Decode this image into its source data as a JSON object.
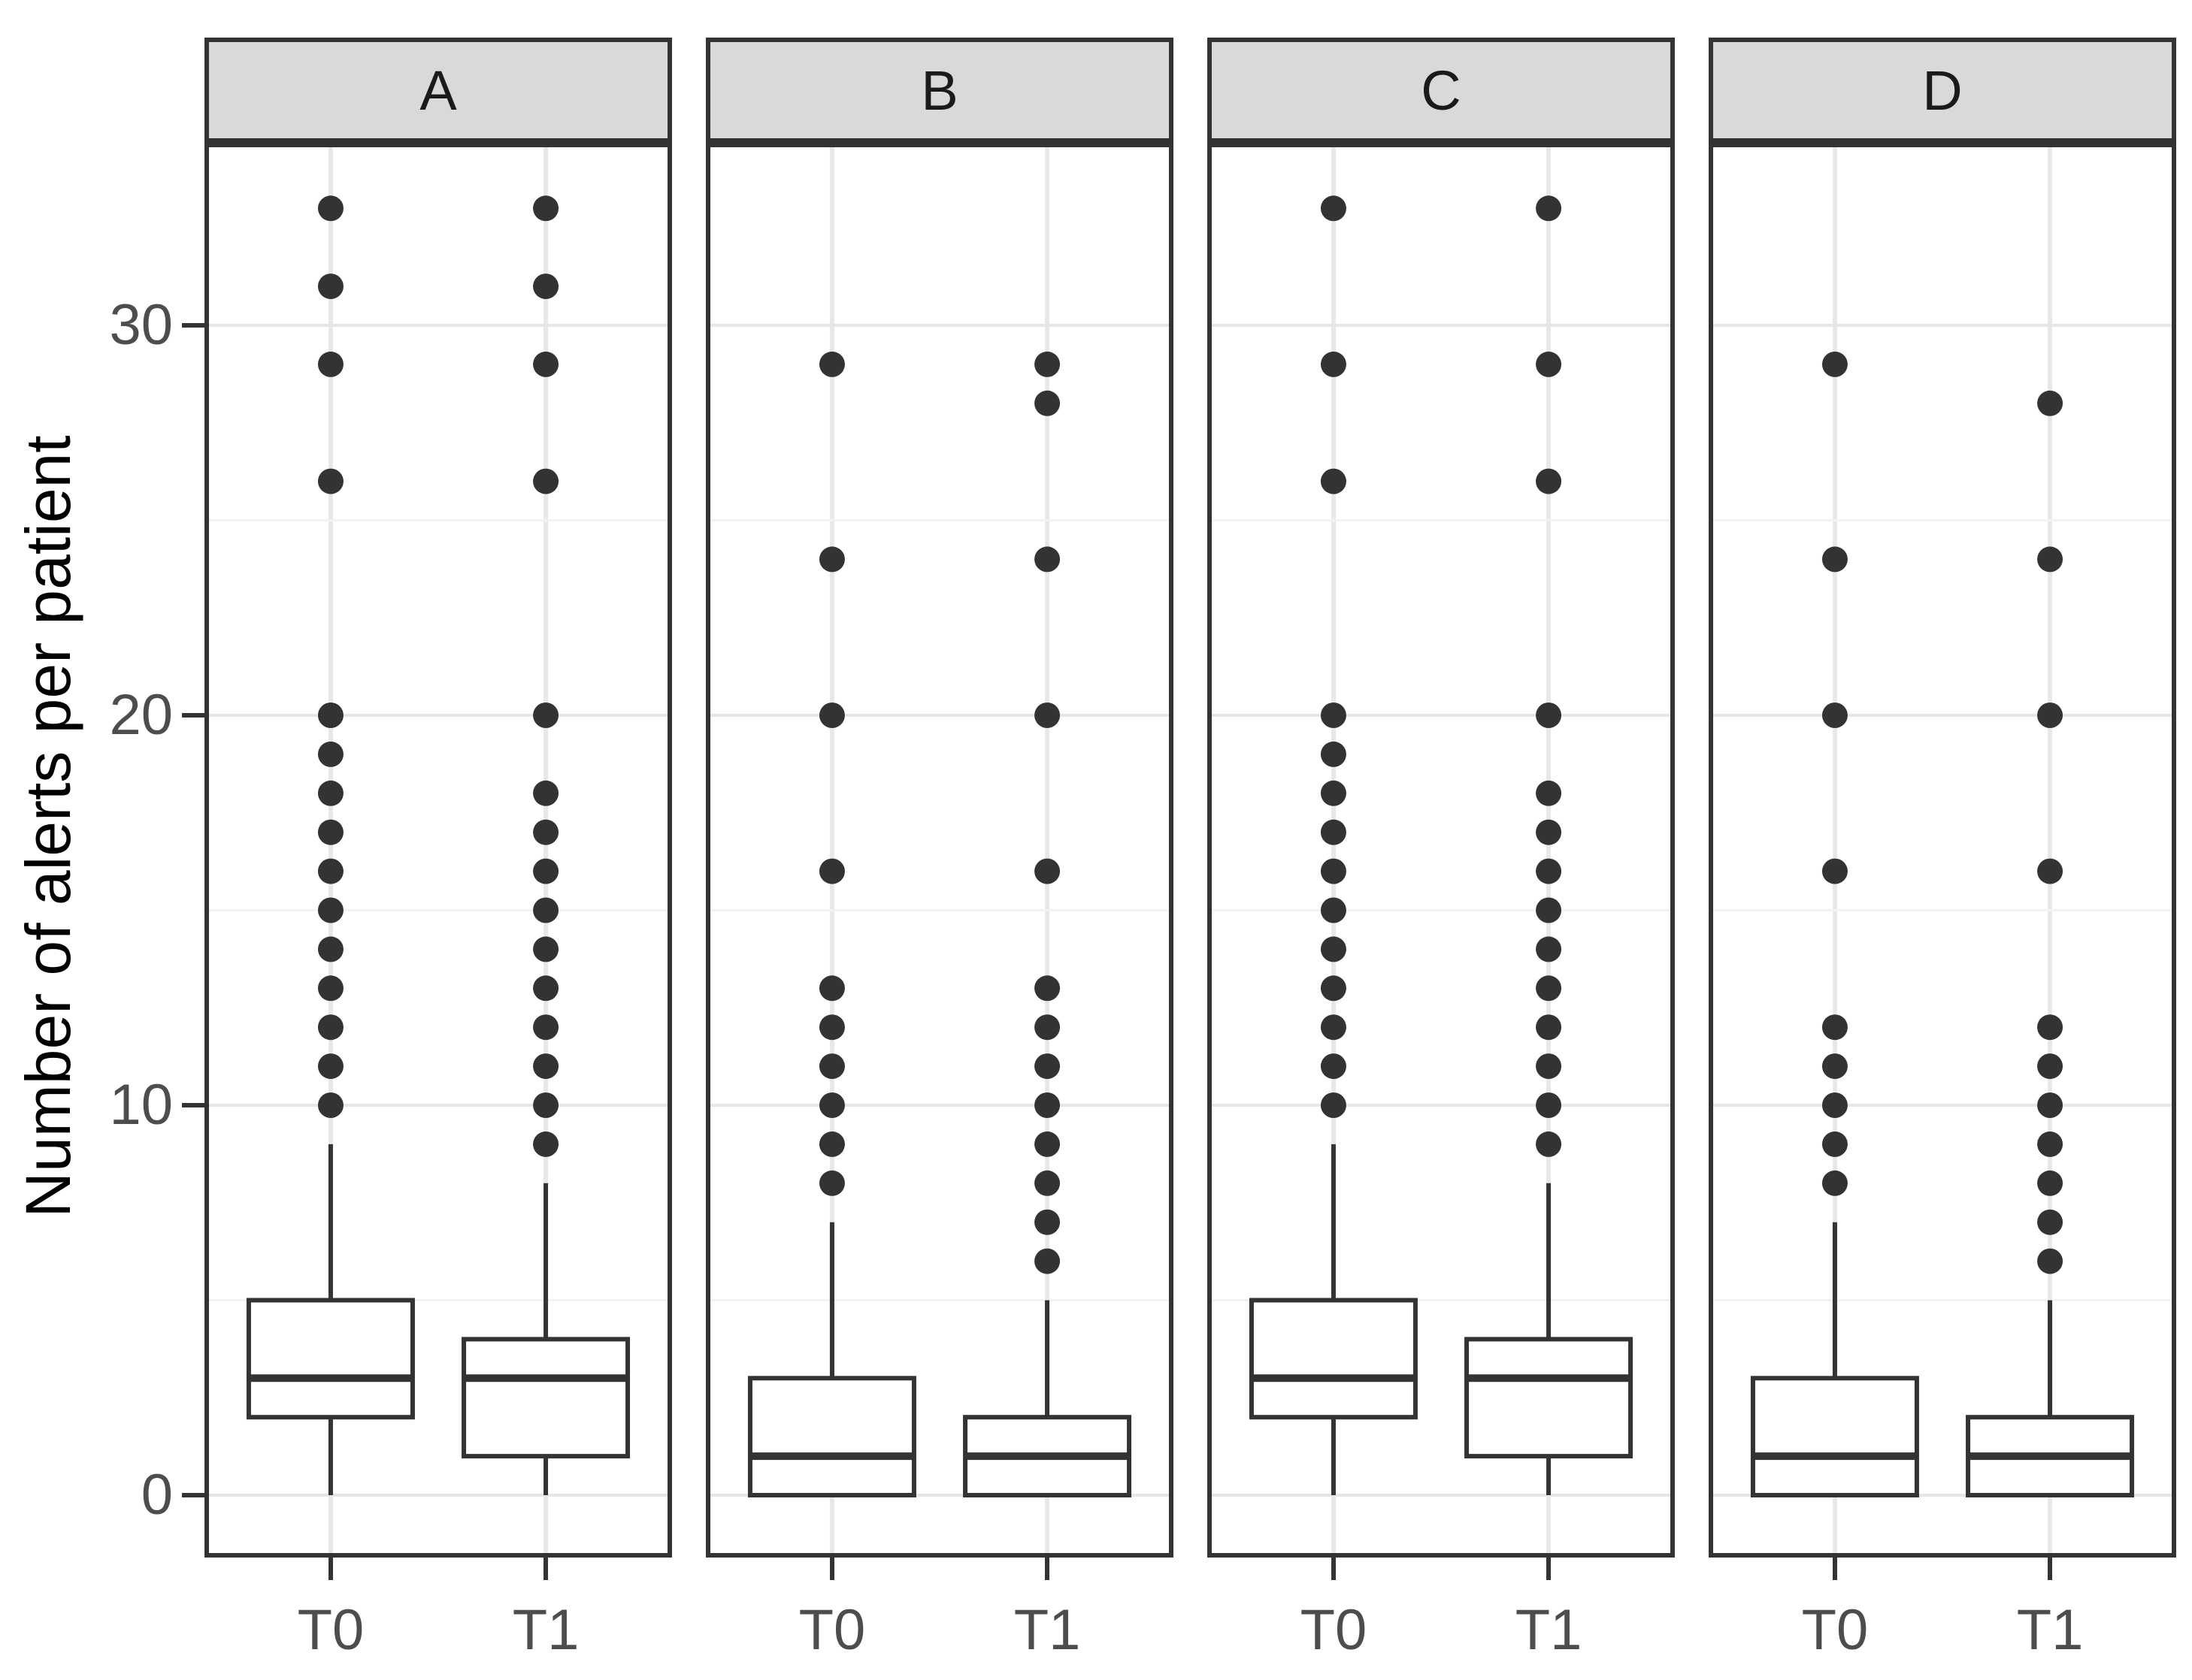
{
  "chart_data": {
    "type": "boxplot",
    "title": "",
    "ylabel": "Number of alerts per patient",
    "xlabel": "",
    "categories": [
      "T0",
      "T1"
    ],
    "y_axis": {
      "major_ticks": [
        0,
        10,
        20,
        30
      ],
      "minor_gridlines": [
        5,
        15,
        25
      ],
      "ylim": [
        -1.6,
        34.7
      ],
      "grid": true
    },
    "legend_position": "none",
    "facets": [
      {
        "label": "A",
        "boxes": [
          {
            "category": "T0",
            "whisker_low": 0,
            "q1": 2,
            "median": 3,
            "q3": 5,
            "whisker_high": 9,
            "outliers": [
              10,
              11,
              12,
              13,
              14,
              15,
              16,
              17,
              18,
              19,
              20,
              26,
              29,
              31,
              33
            ]
          },
          {
            "category": "T1",
            "whisker_low": 0,
            "q1": 1,
            "median": 3,
            "q3": 4,
            "whisker_high": 8,
            "outliers": [
              9,
              10,
              11,
              12,
              13,
              14,
              15,
              16,
              17,
              18,
              20,
              26,
              29,
              31,
              33
            ]
          }
        ]
      },
      {
        "label": "B",
        "boxes": [
          {
            "category": "T0",
            "whisker_low": 0,
            "q1": 0,
            "median": 1,
            "q3": 3,
            "whisker_high": 7,
            "outliers": [
              8,
              9,
              10,
              11,
              12,
              13,
              16,
              20,
              24,
              29
            ]
          },
          {
            "category": "T1",
            "whisker_low": 0,
            "q1": 0,
            "median": 1,
            "q3": 2,
            "whisker_high": 5,
            "outliers": [
              6,
              7,
              8,
              9,
              10,
              11,
              12,
              13,
              16,
              20,
              24,
              28,
              29
            ]
          }
        ]
      },
      {
        "label": "C",
        "boxes": [
          {
            "category": "T0",
            "whisker_low": 0,
            "q1": 2,
            "median": 3,
            "q3": 5,
            "whisker_high": 9,
            "outliers": [
              10,
              11,
              12,
              13,
              14,
              15,
              16,
              17,
              18,
              19,
              20,
              26,
              29,
              33
            ]
          },
          {
            "category": "T1",
            "whisker_low": 0,
            "q1": 1,
            "median": 3,
            "q3": 4,
            "whisker_high": 8,
            "outliers": [
              9,
              10,
              11,
              12,
              13,
              14,
              15,
              16,
              17,
              18,
              20,
              26,
              29,
              33
            ]
          }
        ]
      },
      {
        "label": "D",
        "boxes": [
          {
            "category": "T0",
            "whisker_low": 0,
            "q1": 0,
            "median": 1,
            "q3": 3,
            "whisker_high": 7,
            "outliers": [
              8,
              9,
              10,
              11,
              12,
              16,
              20,
              24,
              29
            ]
          },
          {
            "category": "T1",
            "whisker_low": 0,
            "q1": 0,
            "median": 1,
            "q3": 2,
            "whisker_high": 5,
            "outliers": [
              6,
              7,
              8,
              9,
              10,
              11,
              12,
              16,
              20,
              24,
              28
            ]
          }
        ]
      }
    ],
    "colors": {
      "strip_fill": "#d9d9d9",
      "panel_border": "#333333",
      "box_stroke": "#333333",
      "box_fill": "#ffffff",
      "median": "#333333",
      "outlier": "#333333",
      "grid_major": "#e6e6e6",
      "grid_minor": "#f2f2f2",
      "grid_vertical": "#e8e8e8",
      "tick_mark": "#333333",
      "tick_label": "#4d4d4d",
      "axis_title": "#000000"
    }
  }
}
